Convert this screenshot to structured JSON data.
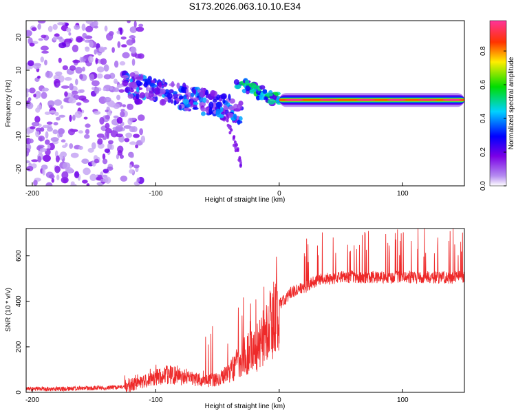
{
  "title": "S173.2026.063.10.10.E34",
  "chart_data": [
    {
      "type": "heatmap",
      "name": "spectrogram",
      "title": "S173.2026.063.10.10.E34",
      "xlabel": "Height of straight line (km)",
      "ylabel": "Frequency (Hz)",
      "xlim": [
        -205,
        150
      ],
      "ylim": [
        -25,
        25
      ],
      "xticks": [
        -200,
        -100,
        0,
        100
      ],
      "yticks": [
        -20,
        -10,
        0,
        10,
        20
      ],
      "colorbar": {
        "label": "Normalized spectral amplitude",
        "range": [
          0.0,
          0.98
        ],
        "ticks": [
          0.0,
          0.2,
          0.4,
          0.6,
          0.8
        ]
      },
      "features": [
        {
          "description": "scattered broadband noise",
          "x_range": [
            -205,
            -115
          ],
          "freq_range": [
            -25,
            25
          ],
          "amplitude": 0.1
        },
        {
          "description": "chirp band descending",
          "x_range": [
            -125,
            -30
          ],
          "freq_range": [
            -5,
            10
          ],
          "amplitude": 0.25
        },
        {
          "description": "secondary branch",
          "x_range": [
            -40,
            -30
          ],
          "freq_range": [
            -19,
            -5
          ],
          "amplitude": 0.15
        },
        {
          "description": "steady narrow tone",
          "x_range": [
            0,
            150
          ],
          "freq": 1,
          "amplitude": 0.98
        }
      ]
    },
    {
      "type": "line",
      "name": "snr",
      "xlabel": "Height of straight line (km)",
      "ylabel": "SNR (10 * v/v)",
      "xlim": [
        -205,
        150
      ],
      "ylim": [
        0,
        720
      ],
      "xticks": [
        -200,
        -100,
        0,
        100
      ],
      "yticks": [
        0,
        200,
        400,
        600
      ],
      "series": [
        {
          "name": "SNR",
          "color": "#ee2a2a",
          "x": [
            -205,
            -180,
            -160,
            -140,
            -125,
            -110,
            -100,
            -90,
            -80,
            -70,
            -60,
            -50,
            -40,
            -35,
            -30,
            -25,
            -20,
            -15,
            -10,
            -5,
            0,
            5,
            10,
            20,
            30,
            40,
            50,
            60,
            70,
            80,
            90,
            100,
            110,
            120,
            130,
            140,
            150
          ],
          "values": [
            15,
            15,
            18,
            20,
            25,
            45,
            65,
            80,
            70,
            60,
            50,
            60,
            90,
            120,
            150,
            170,
            180,
            230,
            270,
            320,
            390,
            410,
            440,
            460,
            490,
            500,
            505,
            510,
            505,
            505,
            505,
            510,
            505,
            505,
            505,
            505,
            510
          ]
        }
      ]
    }
  ]
}
